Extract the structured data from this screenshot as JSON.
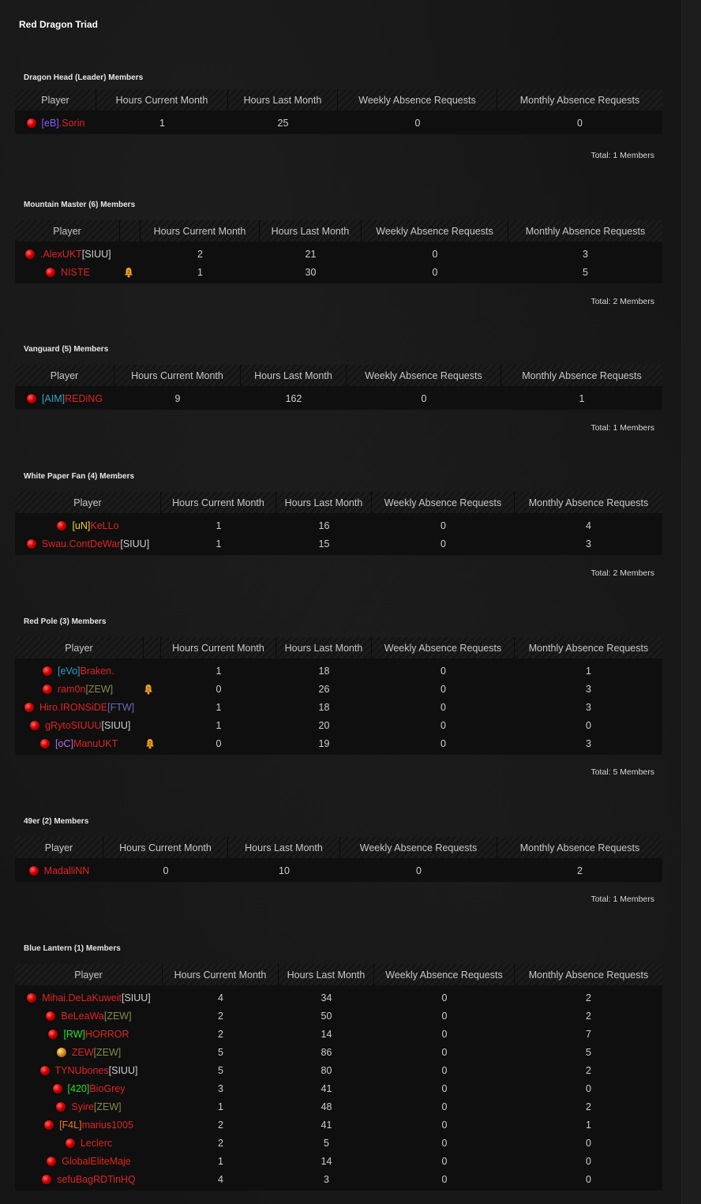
{
  "faction_title": "Red Dragon Triad",
  "headers": {
    "player": "Player",
    "hours_current": "Hours Current Month",
    "hours_last": "Hours Last Month",
    "weekly_absence": "Weekly Absence Requests",
    "monthly_absence": "Monthly Absence Requests"
  },
  "groups": [
    {
      "title": "Dragon Head (Leader) Members",
      "total": "Total: 1 Members",
      "members": [
        {
          "tag": "[eB]",
          "tag_color": "#8a5cff",
          "name": ".Sorin",
          "hours_current": "1",
          "hours_last": "25",
          "weekly": "0",
          "monthly": "0"
        }
      ]
    },
    {
      "title": "Mountain Master (6) Members",
      "total": "Total: 2 Members",
      "members": [
        {
          "name": ".AlexUKT",
          "tag": "[SIUU]",
          "hours_current": "2",
          "hours_last": "21",
          "weekly": "0",
          "monthly": "3"
        },
        {
          "name": "NISTE",
          "bell": true,
          "hours_current": "1",
          "hours_last": "30",
          "weekly": "0",
          "monthly": "5"
        }
      ]
    },
    {
      "title": "Vanguard (5) Members",
      "total": "Total: 1 Members",
      "members": [
        {
          "tag": "[AIM]",
          "name": "REDiNG",
          "hours_current": "9",
          "hours_last": "162",
          "weekly": "0",
          "monthly": "1"
        }
      ]
    },
    {
      "title": "White Paper Fan (4) Members",
      "total": "Total: 2 Members",
      "members": [
        {
          "tag": "[uN]",
          "name": "KeLLo",
          "hours_current": "1",
          "hours_last": "16",
          "weekly": "0",
          "monthly": "4"
        },
        {
          "name": "Swau.ContDeWar",
          "tag": "[SIUU]",
          "hours_current": "1",
          "hours_last": "15",
          "weekly": "0",
          "monthly": "3"
        }
      ]
    },
    {
      "title": "Red Pole (3) Members",
      "total": "Total: 5 Members",
      "members": [
        {
          "tag": "[eVo]",
          "name": "Braken.",
          "hours_current": "1",
          "hours_last": "18",
          "weekly": "0",
          "monthly": "1"
        },
        {
          "name": "ram0n",
          "tag": "[ZEW]",
          "bell": true,
          "hours_current": "0",
          "hours_last": "26",
          "weekly": "0",
          "monthly": "3"
        },
        {
          "name": "Hiro.IRONSiDE",
          "tag": "[FTW]",
          "hours_current": "1",
          "hours_last": "18",
          "weekly": "0",
          "monthly": "3"
        },
        {
          "name": "gRytoSIUUU",
          "tag": "[SIUU]",
          "hours_current": "1",
          "hours_last": "20",
          "weekly": "0",
          "monthly": "0"
        },
        {
          "tag": "[oC]",
          "name": "ManuUKT",
          "bell": true,
          "hours_current": "0",
          "hours_last": "19",
          "weekly": "0",
          "monthly": "3"
        }
      ]
    },
    {
      "title": "49er (2) Members",
      "total": "Total: 1 Members",
      "members": [
        {
          "name": "MadalliNN",
          "hours_current": "0",
          "hours_last": "10",
          "weekly": "0",
          "monthly": "2"
        }
      ]
    },
    {
      "title": "Blue Lantern (1) Members",
      "total": "",
      "members": [
        {
          "name": "Mihai.DeLaKuweit",
          "tag": "[SIUU]",
          "hours_current": "4",
          "hours_last": "34",
          "weekly": "0",
          "monthly": "2"
        },
        {
          "name": "BeLeaWa",
          "tag": "[ZEW]",
          "hours_current": "2",
          "hours_last": "50",
          "weekly": "0",
          "monthly": "2"
        },
        {
          "tag": "[RW]",
          "name": "HORROR",
          "hours_current": "2",
          "hours_last": "14",
          "weekly": "0",
          "monthly": "7"
        },
        {
          "name": "ZEW",
          "tag": "[ZEW]",
          "dot": "orange",
          "hours_current": "5",
          "hours_last": "86",
          "weekly": "0",
          "monthly": "5"
        },
        {
          "name": "TYNUbones",
          "tag": "[SIUU]",
          "hours_current": "5",
          "hours_last": "80",
          "weekly": "0",
          "monthly": "2"
        },
        {
          "tag": "[420]",
          "name": "BioGrey",
          "hours_current": "3",
          "hours_last": "41",
          "weekly": "0",
          "monthly": "0"
        },
        {
          "name": "Syire",
          "tag": "[ZEW]",
          "hours_current": "1",
          "hours_last": "48",
          "weekly": "0",
          "monthly": "2"
        },
        {
          "tag": "[F4L]",
          "name": "marius1005",
          "hours_current": "2",
          "hours_last": "41",
          "weekly": "0",
          "monthly": "1"
        },
        {
          "name": "Leclerc",
          "hours_current": "2",
          "hours_last": "5",
          "weekly": "0",
          "monthly": "0"
        },
        {
          "name": "GlobalEliteMaje",
          "hours_current": "1",
          "hours_last": "14",
          "weekly": "0",
          "monthly": "0"
        },
        {
          "name": "sefuBagRDTinHQ",
          "hours_current": "4",
          "hours_last": "3",
          "weekly": "0",
          "monthly": "0"
        }
      ]
    }
  ]
}
